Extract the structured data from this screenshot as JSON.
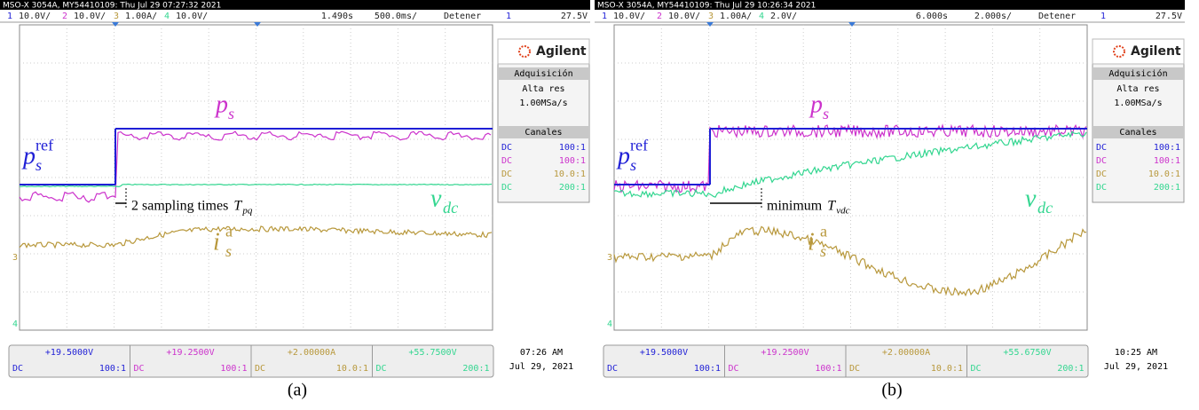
{
  "panels": [
    {
      "header": "MSO-X 3054A, MY54410109: Thu Jul 29 07:27:32 2021",
      "channels": [
        {
          "number": "1",
          "scale": "10.0V/"
        },
        {
          "number": "2",
          "scale": "10.0V/"
        },
        {
          "number": "3",
          "scale": "1.00A/"
        },
        {
          "number": "4",
          "scale": "10.0V/"
        }
      ],
      "delay": "1.490s",
      "timebase": "500.0ms/",
      "run_state": "Detener",
      "trigger_source": "1",
      "trigger_level": "27.5V",
      "side_panel": {
        "brand": "Agilent",
        "acquisition_title": "Adquisición",
        "mode": "Alta res",
        "sample_rate": "1.00MSa/s",
        "channels_title": "Canales",
        "channels": [
          {
            "coupling": "DC",
            "probe": "100:1"
          },
          {
            "coupling": "DC",
            "probe": "100:1"
          },
          {
            "coupling": "DC",
            "probe": "10.0:1"
          },
          {
            "coupling": "DC",
            "probe": "200:1"
          }
        ]
      },
      "offsets": [
        {
          "value": "+19.5000V",
          "coupling": "DC",
          "probe": "100:1"
        },
        {
          "value": "+19.2500V",
          "coupling": "DC",
          "probe": "100:1"
        },
        {
          "value": "+2.00000A",
          "coupling": "DC",
          "probe": "10.0:1"
        },
        {
          "value": "+55.7500V",
          "coupling": "DC",
          "probe": "200:1"
        }
      ],
      "time": "07:26 AM",
      "date": "Jul 29, 2021",
      "caption": "(a)",
      "labels": {
        "ps": {
          "base": "p",
          "sub": "s"
        },
        "ref": {
          "base": "p",
          "sub": "s",
          "sup": "ref"
        },
        "vdc": {
          "base": "v",
          "sub": "dc"
        },
        "is": {
          "base": "i",
          "sub": "s",
          "sup": "a"
        }
      },
      "annotation": {
        "text": "2 sampling times",
        "symbol": "T",
        "sub": "pq"
      },
      "markers": [
        "3",
        "4"
      ]
    },
    {
      "header": "MSO-X 3054A, MY54410109: Thu Jul 29 10:26:34 2021",
      "channels": [
        {
          "number": "1",
          "scale": "10.0V/"
        },
        {
          "number": "2",
          "scale": "10.0V/"
        },
        {
          "number": "3",
          "scale": "1.00A/"
        },
        {
          "number": "4",
          "scale": "2.0V/"
        }
      ],
      "delay": "6.000s",
      "timebase": "2.000s/",
      "run_state": "Detener",
      "trigger_source": "1",
      "trigger_level": "27.5V",
      "side_panel": {
        "brand": "Agilent",
        "acquisition_title": "Adquisición",
        "mode": "Alta res",
        "sample_rate": "1.00MSa/s",
        "channels_title": "Canales",
        "channels": [
          {
            "coupling": "DC",
            "probe": "100:1"
          },
          {
            "coupling": "DC",
            "probe": "100:1"
          },
          {
            "coupling": "DC",
            "probe": "10.0:1"
          },
          {
            "coupling": "DC",
            "probe": "200:1"
          }
        ]
      },
      "offsets": [
        {
          "value": "+19.5000V",
          "coupling": "DC",
          "probe": "100:1"
        },
        {
          "value": "+19.2500V",
          "coupling": "DC",
          "probe": "100:1"
        },
        {
          "value": "+2.00000A",
          "coupling": "DC",
          "probe": "10.0:1"
        },
        {
          "value": "+55.6750V",
          "coupling": "DC",
          "probe": "200:1"
        }
      ],
      "time": "10:25 AM",
      "date": "Jul 29, 2021",
      "caption": "(b)",
      "labels": {
        "ps": {
          "base": "p",
          "sub": "s"
        },
        "ref": {
          "base": "p",
          "sub": "s",
          "sup": "ref"
        },
        "vdc": {
          "base": "v",
          "sub": "dc"
        },
        "is": {
          "base": "i",
          "sub": "s",
          "sup": "a"
        }
      },
      "annotation": {
        "text": "minimum",
        "symbol": "T",
        "sub": "vdc"
      },
      "markers": [
        "3",
        "4"
      ]
    }
  ]
}
